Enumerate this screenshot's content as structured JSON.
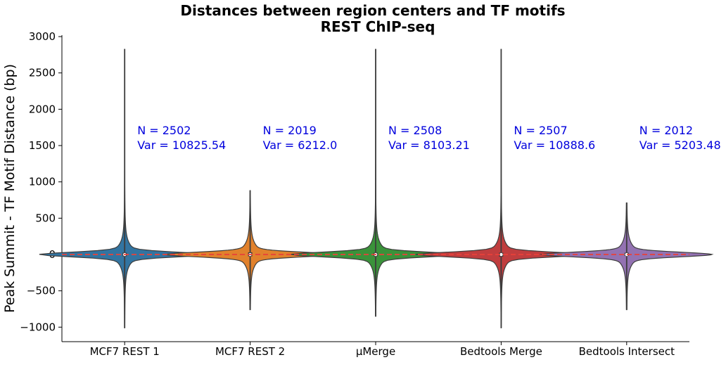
{
  "chart_data": {
    "type": "violin",
    "title": "Distances between region centers and TF motifs",
    "subtitle": "REST ChIP-seq",
    "xlabel": "",
    "ylabel": "Peak Summit - TF Motif Distance (bp)",
    "ylim": [
      -1200,
      3020
    ],
    "yticks": [
      -1000,
      -500,
      0,
      500,
      1000,
      1500,
      2000,
      2500,
      3000
    ],
    "yticklabels": [
      "−1000",
      "−500",
      "0",
      "500",
      "1000",
      "1500",
      "2000",
      "2500",
      "3000"
    ],
    "reference_line": {
      "y": 0,
      "color": "#e8413a",
      "style": "dashed"
    },
    "categories": [
      "MCF7 REST 1",
      "MCF7 REST 2",
      "μMerge",
      "Bedtools Merge",
      "Bedtools Intersect"
    ],
    "series": [
      {
        "category": "MCF7 REST 1",
        "color": "#3274a1",
        "min": -1010,
        "max": 2830,
        "q1": -25,
        "median": 0,
        "q3": 25,
        "N": "N = 2502",
        "Var": "Var = 10825.54"
      },
      {
        "category": "MCF7 REST 2",
        "color": "#e1812c",
        "min": -760,
        "max": 880,
        "q1": -25,
        "median": 0,
        "q3": 30,
        "N": "N = 2019",
        "Var": "Var = 6212.0"
      },
      {
        "category": "μMerge",
        "color": "#3a923a",
        "min": -850,
        "max": 2830,
        "q1": -25,
        "median": 0,
        "q3": 25,
        "N": "N = 2508",
        "Var": "Var = 8103.21"
      },
      {
        "category": "Bedtools Merge",
        "color": "#c03d3e",
        "min": -1010,
        "max": 2830,
        "q1": -30,
        "median": 0,
        "q3": 25,
        "N": "N = 2507",
        "Var": "Var = 10888.6"
      },
      {
        "category": "Bedtools Intersect",
        "color": "#9372b2",
        "min": -760,
        "max": 710,
        "q1": -20,
        "median": 0,
        "q3": 25,
        "N": "N = 2012",
        "Var": "Var = 5203.48"
      }
    ],
    "grid": false,
    "legend": "none"
  }
}
